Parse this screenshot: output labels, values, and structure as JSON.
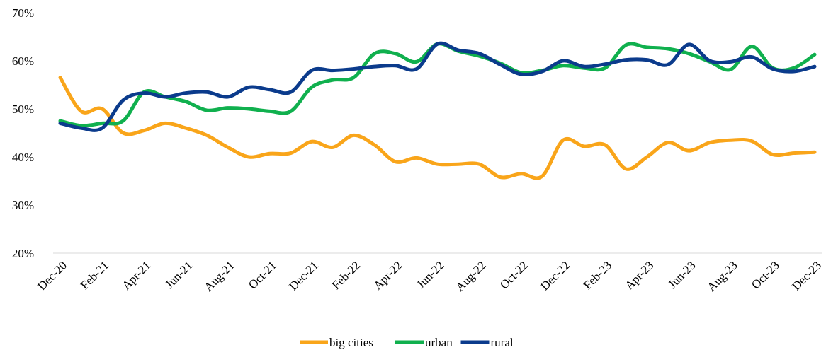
{
  "chart_data": {
    "type": "line",
    "categories": [
      "Dec-20",
      null,
      "Feb-21",
      null,
      "Apr-21",
      null,
      "Jun-21",
      null,
      "Aug-21",
      null,
      "Oct-21",
      null,
      "Dec-21",
      null,
      "Feb-22",
      null,
      "Apr-22",
      null,
      "Jun-22",
      null,
      "Aug-22",
      null,
      "Oct-22",
      null,
      "Dec-22",
      null,
      "Feb-23",
      null,
      "Apr-23",
      null,
      "Jun-23",
      null,
      "Aug-23",
      null,
      "Oct-23",
      null,
      "Dec-23"
    ],
    "series": [
      {
        "name": "big cities",
        "color": "#f9a51a",
        "values": [
          56.5,
          49.5,
          50,
          45,
          45.5,
          47,
          46,
          44.5,
          42,
          40,
          40.7,
          40.8,
          43.2,
          42,
          44.5,
          42.5,
          39,
          39.8,
          38.5,
          38.5,
          38.5,
          35.8,
          36.5,
          36,
          43.5,
          42.2,
          42.5,
          37.5,
          40,
          43,
          41.3,
          43,
          43.5,
          43.3,
          40.5,
          40.8,
          41
        ]
      },
      {
        "name": "urban",
        "color": "#10b04e",
        "values": [
          47.5,
          46.5,
          47,
          47.5,
          53.5,
          52.5,
          51.5,
          49.7,
          50.2,
          50,
          49.5,
          49.5,
          54.5,
          56,
          56.5,
          61.5,
          61.5,
          59.8,
          63.5,
          62,
          61,
          59.5,
          57.5,
          58,
          59,
          58.5,
          58.5,
          63.3,
          62.8,
          62.5,
          61.5,
          59.8,
          58.2,
          63,
          58.5,
          58.5,
          61.3
        ]
      },
      {
        "name": "rural",
        "color": "#0b3b8c",
        "values": [
          47,
          46,
          46,
          51.8,
          53.3,
          52.5,
          53.3,
          53.5,
          52.5,
          54.5,
          54,
          53.5,
          58,
          58,
          58.3,
          58.8,
          59,
          58.3,
          63.5,
          62.2,
          61.5,
          59.2,
          57.2,
          57.8,
          60,
          58.8,
          59.3,
          60.2,
          60.2,
          59.2,
          63.4,
          60,
          59.8,
          60.8,
          58.3,
          57.8,
          58.8
        ]
      }
    ],
    "ylim": [
      20,
      70
    ],
    "yticks": [
      {
        "value": 20,
        "label": "20%"
      },
      {
        "value": 30,
        "label": "30%"
      },
      {
        "value": 40,
        "label": "40%"
      },
      {
        "value": 50,
        "label": "50%"
      },
      {
        "value": 60,
        "label": "60%"
      },
      {
        "value": 70,
        "label": "70%"
      }
    ],
    "grid": false,
    "legend": "bottom"
  }
}
